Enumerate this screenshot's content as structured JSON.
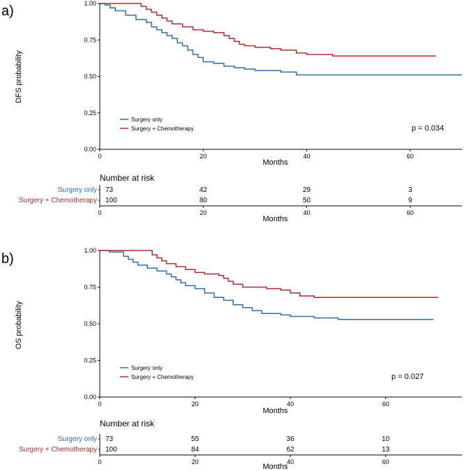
{
  "chart_data": [
    {
      "type": "line",
      "panel_label": "a)",
      "ylabel": "DFS probability",
      "xlabel": "Months",
      "xlim": [
        0,
        70
      ],
      "ylim": [
        0,
        1
      ],
      "x_ticks": [
        0,
        20,
        40,
        60
      ],
      "y_ticks": [
        "0.00",
        "0.25",
        "0.50",
        "0.75",
        "1.00"
      ],
      "legend_position": "bottom-left",
      "annotation": "p = 0.034",
      "series": [
        {
          "name": "Surgery only",
          "color": "#2e6db0",
          "x": [
            0,
            1,
            2,
            3,
            5,
            7,
            9,
            10,
            11,
            12,
            13,
            14,
            15,
            16,
            17,
            18,
            19,
            20,
            22,
            24,
            26,
            28,
            30,
            35,
            38,
            45,
            55,
            70
          ],
          "y": [
            1.0,
            0.99,
            0.97,
            0.95,
            0.92,
            0.89,
            0.87,
            0.84,
            0.82,
            0.8,
            0.78,
            0.76,
            0.73,
            0.71,
            0.68,
            0.65,
            0.63,
            0.6,
            0.59,
            0.57,
            0.56,
            0.55,
            0.54,
            0.53,
            0.51,
            0.51,
            0.51,
            0.51
          ]
        },
        {
          "name": "Surgery + Chemotherapy",
          "color": "#b22a2f",
          "x": [
            0,
            6,
            8,
            9,
            10,
            11,
            12,
            13,
            14,
            16,
            18,
            20,
            22,
            24,
            25,
            26,
            27,
            28,
            30,
            33,
            35,
            38,
            40,
            45,
            50,
            55,
            60,
            65
          ],
          "y": [
            1.0,
            1.0,
            0.98,
            0.96,
            0.94,
            0.92,
            0.9,
            0.88,
            0.86,
            0.84,
            0.82,
            0.81,
            0.8,
            0.78,
            0.76,
            0.74,
            0.72,
            0.71,
            0.7,
            0.69,
            0.68,
            0.66,
            0.65,
            0.64,
            0.64,
            0.64,
            0.64,
            0.64
          ]
        }
      ],
      "risk_table": {
        "title": "Number at risk",
        "xlabel": "Months",
        "x_ticks": [
          0,
          20,
          40,
          60
        ],
        "time_points": [
          0,
          20,
          40,
          60
        ],
        "rows": [
          {
            "label": "Surgery only",
            "color": "#2e6db0",
            "values": [
              "73",
              "42",
              "29",
              "3"
            ]
          },
          {
            "label": "Surgery + Chemotherapy",
            "color": "#b22a2f",
            "values": [
              "100",
              "80",
              "50",
              "9"
            ]
          }
        ]
      }
    },
    {
      "type": "line",
      "panel_label": "b)",
      "ylabel": "OS probability",
      "xlabel": "Months",
      "xlim": [
        0,
        76
      ],
      "ylim": [
        0,
        1
      ],
      "x_ticks": [
        0,
        20,
        40,
        60
      ],
      "y_ticks": [
        "0.00",
        "0.25",
        "0.50",
        "0.75",
        "1.00"
      ],
      "legend_position": "bottom-left",
      "annotation": "p = 0.027",
      "series": [
        {
          "name": "Surgery only",
          "color": "#2e6db0",
          "x": [
            0,
            2,
            5,
            6,
            7,
            8,
            10,
            12,
            14,
            15,
            16,
            17,
            18,
            20,
            22,
            24,
            26,
            28,
            30,
            32,
            34,
            38,
            40,
            45,
            50,
            55,
            60,
            70
          ],
          "y": [
            1.0,
            0.99,
            0.96,
            0.94,
            0.92,
            0.9,
            0.88,
            0.86,
            0.84,
            0.82,
            0.8,
            0.78,
            0.76,
            0.74,
            0.71,
            0.68,
            0.66,
            0.63,
            0.61,
            0.59,
            0.57,
            0.56,
            0.55,
            0.54,
            0.53,
            0.53,
            0.53,
            0.53
          ]
        },
        {
          "name": "Surgery + Chemotherapy",
          "color": "#b22a2f",
          "x": [
            0,
            10,
            11,
            12,
            13,
            14,
            16,
            18,
            20,
            22,
            25,
            26,
            27,
            28,
            30,
            35,
            38,
            40,
            42,
            45,
            50,
            55,
            60,
            66,
            71
          ],
          "y": [
            1.0,
            1.0,
            0.97,
            0.95,
            0.93,
            0.91,
            0.89,
            0.87,
            0.85,
            0.84,
            0.83,
            0.81,
            0.79,
            0.77,
            0.75,
            0.74,
            0.73,
            0.71,
            0.69,
            0.68,
            0.68,
            0.68,
            0.68,
            0.68,
            0.68
          ]
        }
      ],
      "risk_table": {
        "title": "Number at risk",
        "xlabel": "Months",
        "x_ticks": [
          0,
          20,
          40,
          60
        ],
        "time_points": [
          0,
          20,
          40,
          60
        ],
        "rows": [
          {
            "label": "Surgery only",
            "color": "#2e6db0",
            "values": [
              "73",
              "55",
              "36",
              "10"
            ]
          },
          {
            "label": "Surgery + Chemotherapy",
            "color": "#b22a2f",
            "values": [
              "100",
              "84",
              "62",
              "13"
            ]
          }
        ]
      }
    }
  ]
}
